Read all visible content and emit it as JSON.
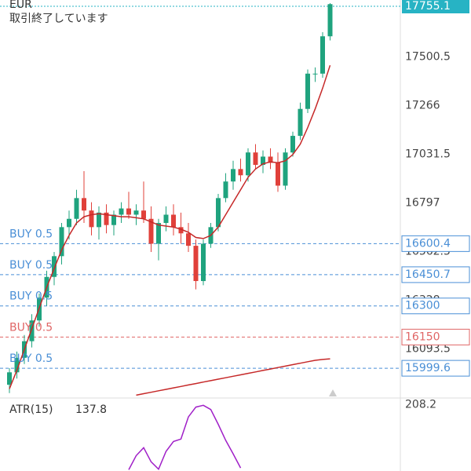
{
  "chart_data": [
    {
      "type": "candlestick",
      "symbol": "EUR",
      "status": "取引終了しています",
      "open": [
        15920,
        15980,
        16050,
        16130,
        16230,
        16340,
        16440,
        16540,
        16680,
        16720,
        16820,
        16760,
        16680,
        16750,
        16690,
        16740,
        16770,
        16740,
        16760,
        16720,
        16600,
        16700,
        16740,
        16680,
        16650,
        16590,
        16420,
        16600,
        16680,
        16820,
        16900,
        16960,
        16930,
        17040,
        16980,
        17020,
        16990,
        16880,
        17040,
        17120,
        17250,
        17420,
        17420,
        17600
      ],
      "high": [
        16000,
        16080,
        16160,
        16260,
        16360,
        16470,
        16560,
        16700,
        16760,
        16860,
        16950,
        16800,
        16780,
        16790,
        16760,
        16800,
        16850,
        16790,
        16900,
        16780,
        16720,
        16780,
        16790,
        16750,
        16700,
        16620,
        16620,
        16700,
        16840,
        16940,
        17000,
        17010,
        17060,
        17080,
        17050,
        17060,
        17040,
        17060,
        17140,
        17280,
        17440,
        17450,
        17620,
        17760
      ],
      "low": [
        15880,
        15950,
        16020,
        16100,
        16200,
        16300,
        16400,
        16500,
        16620,
        16690,
        16700,
        16640,
        16620,
        16650,
        16640,
        16700,
        16720,
        16690,
        16700,
        16560,
        16520,
        16660,
        16640,
        16600,
        16560,
        16380,
        16400,
        16580,
        16660,
        16800,
        16860,
        16900,
        16900,
        16960,
        16940,
        16960,
        16850,
        16860,
        17020,
        17100,
        17230,
        17380,
        17400,
        17580
      ],
      "close": [
        15980,
        16050,
        16130,
        16230,
        16340,
        16440,
        16540,
        16680,
        16720,
        16820,
        16760,
        16680,
        16750,
        16690,
        16740,
        16770,
        16740,
        16760,
        16720,
        16600,
        16700,
        16740,
        16680,
        16650,
        16590,
        16420,
        16600,
        16680,
        16820,
        16900,
        16960,
        16930,
        17040,
        16980,
        17020,
        16990,
        16880,
        17040,
        17120,
        17250,
        17420,
        17420,
        17600,
        17755.1
      ],
      "up_color": "#1fa37e",
      "down_color": "#e0403a",
      "series": [
        {
          "color": "#c62828",
          "values": [
            15900,
            15990,
            16090,
            16190,
            16290,
            16390,
            16480,
            16570,
            16640,
            16700,
            16730,
            16740,
            16745,
            16740,
            16735,
            16730,
            16730,
            16725,
            16720,
            16705,
            16690,
            16685,
            16680,
            16670,
            16655,
            16630,
            16625,
            16640,
            16680,
            16740,
            16800,
            16860,
            16920,
            16960,
            16985,
            16995,
            16990,
            17000,
            17030,
            17080,
            17160,
            17250,
            17350,
            17460
          ]
        },
        {
          "color": "#c62828",
          "values": [
            null,
            null,
            null,
            null,
            null,
            null,
            null,
            null,
            null,
            null,
            null,
            null,
            null,
            null,
            null,
            null,
            null,
            15870,
            15877,
            15884,
            15891,
            15898,
            15905,
            15912,
            15919,
            15926,
            15933,
            15940,
            15947,
            15954,
            15961,
            15968,
            15975,
            15982,
            15989,
            15996,
            16003,
            16010,
            16017,
            16024,
            16031,
            16038,
            16042,
            16045
          ]
        }
      ],
      "ylim": [
        15860,
        17775
      ],
      "yticks": [
        16093.5,
        16328.0,
        16562.5,
        16797.0,
        17031.5,
        17266.0,
        17500.5
      ],
      "last_price": 17755.1,
      "last_price_color": "#27b3c4",
      "levels": [
        {
          "label": "BUY 0.5",
          "price": 16600.4,
          "color": "#4a8fd6"
        },
        {
          "label": "BUY 0.5",
          "price": 16450.7,
          "color": "#4a8fd6"
        },
        {
          "label": "BUY 0.5",
          "price": 16300.0,
          "color": "#4a8fd6"
        },
        {
          "label": "BUY 0.5",
          "price": 16150.0,
          "color": "#e06666"
        },
        {
          "label": "BUY 0.5",
          "price": 15999.6,
          "color": "#4a8fd6"
        }
      ]
    },
    {
      "type": "line",
      "title": "ATR(15)",
      "last_value": 137.8,
      "color": "#a020c8",
      "values": [
        null,
        null,
        null,
        null,
        null,
        null,
        null,
        null,
        null,
        null,
        null,
        null,
        null,
        null,
        null,
        null,
        102,
        125,
        138,
        115,
        103,
        132,
        148,
        152,
        188,
        204,
        207,
        200,
        176,
        150,
        128,
        105,
        null,
        null,
        null,
        null,
        null,
        null,
        null,
        null,
        null,
        null,
        null,
        null
      ],
      "ylim": [
        100,
        215
      ],
      "yticks": [
        208.2
      ]
    }
  ]
}
